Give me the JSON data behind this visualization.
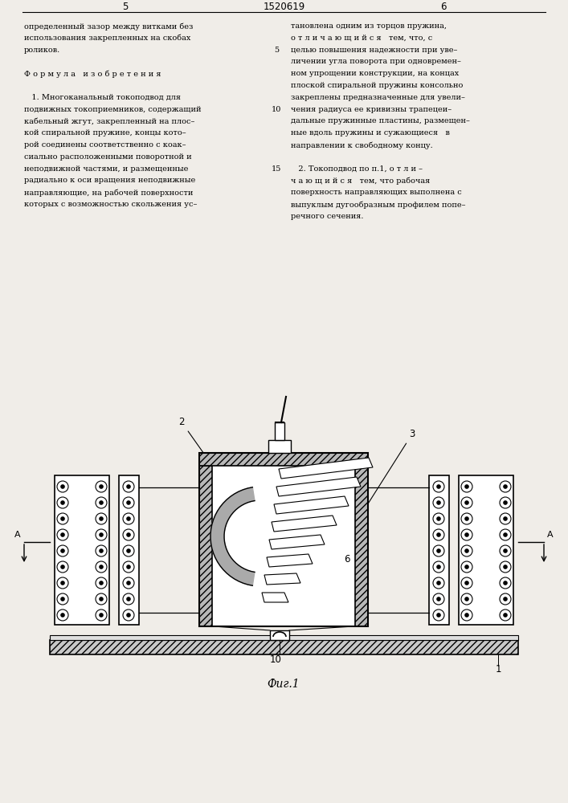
{
  "page_bg": "#f0ede8",
  "title_number": "1520619",
  "page_left_num": "5",
  "page_right_num": "6",
  "text_left_col": [
    "определенный зазор между витками без",
    "использования закрепленных на скобах",
    "роликов.",
    "",
    "Ф о р м у л а   и з о б р е т е н и я",
    "",
    "   1. Многоканальный токоподвод для",
    "подвижных токоприемников, содержащий",
    "кабельный жгут, закрепленный на плос–",
    "кой спиральной пружине, концы кото–",
    "рой соединены соответственно с коак–",
    "сиально расположенными поворотной и",
    "неподвижной частями, и размещенные",
    "радиально к оси вращения неподвижные",
    "направляющие, на рабочей поверхности",
    "которых с возможностью скольжения ус–"
  ],
  "text_right_col": [
    "тановлена одним из торцов пружина,",
    "о т л и ч а ю щ и й с я   тем, что, с",
    "целью повышения надежности при уве–",
    "личении угла поворота при одновремен–",
    "ном упрощении конструкции, на концах",
    "плоской спиральной пружины консольно",
    "закреплены предназначенные для увели–",
    "чения радиуса ее кривизны трапецеи–",
    "дальные пружинные пластины, размещен–",
    "ные вдоль пружины и сужающиеся   в",
    "направлении к свободному концу.",
    "",
    "   2. Токоподвод по п.1, о т л и –",
    "ч а ю щ и й с я   тем, что рабочая",
    "поверхность направляющих выполнена с",
    "выпуклым дугообразным профилем попе–",
    "речного сечения."
  ]
}
